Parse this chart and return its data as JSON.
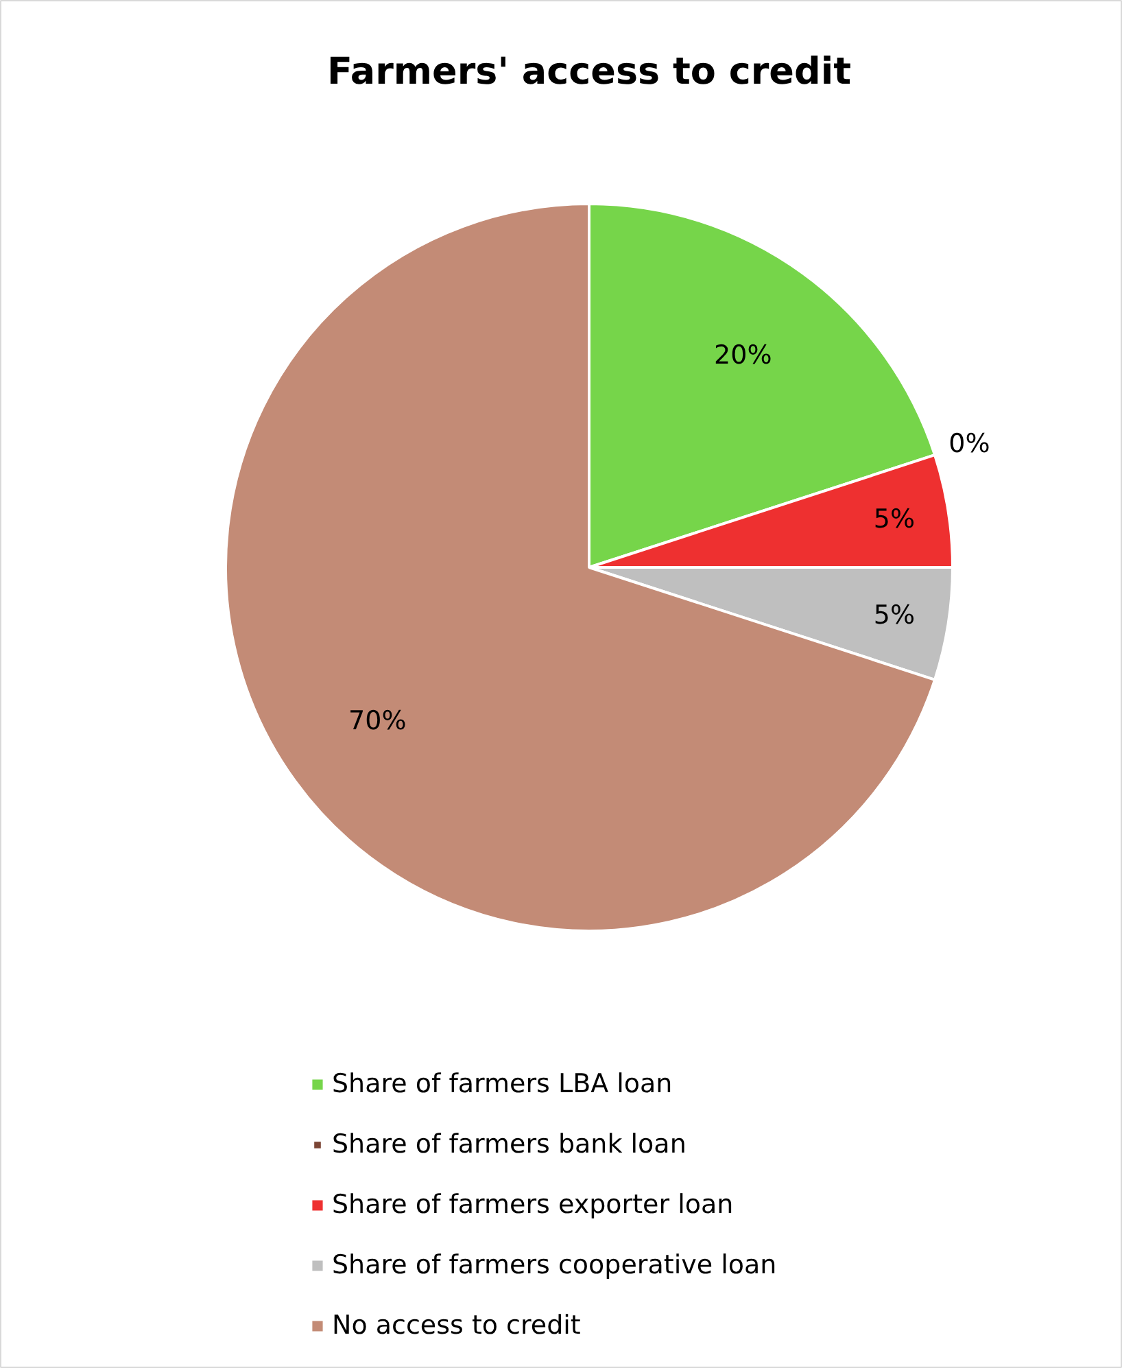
{
  "chart_data": {
    "type": "pie",
    "title": "Farmers' access to credit",
    "categories": [
      "Share of farmers LBA loan",
      "Share of farmers bank loan",
      "Share of farmers exporter loan",
      "Share of farmers cooperative loan",
      "No access to credit"
    ],
    "values": [
      20,
      0,
      5,
      5,
      70
    ],
    "colors": [
      "#76d54a",
      "#7b4535",
      "#ee3030",
      "#bfbfbf",
      "#c38b76"
    ],
    "value_labels": [
      "20%",
      "0%",
      "5%",
      "5%",
      "70%"
    ],
    "legend": "bottom"
  }
}
